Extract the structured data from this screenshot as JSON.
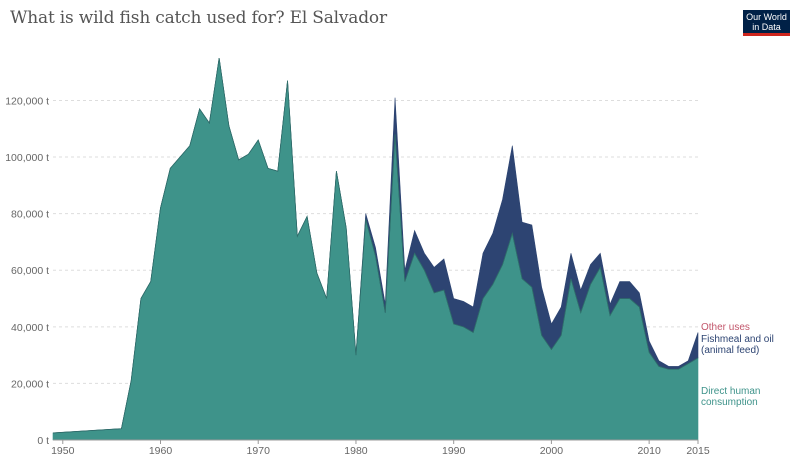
{
  "chart_data": {
    "type": "area",
    "stacked": true,
    "title": "What is wild fish catch used for? El Salvador",
    "xlim": [
      1949,
      2015
    ],
    "ylim": [
      0,
      135000
    ],
    "x_ticks": [
      1950,
      1960,
      1970,
      1980,
      1990,
      2000,
      2010,
      2015
    ],
    "y_ticks": [
      0,
      20000,
      40000,
      60000,
      80000,
      100000,
      120000
    ],
    "y_tick_labels": [
      "0 t",
      "20,000 t",
      "40,000 t",
      "60,000 t",
      "80,000 t",
      "100,000 t",
      "120,000 t"
    ],
    "grid": "horizontal",
    "legend": "right",
    "x": [
      1949,
      1956,
      1957,
      1958,
      1959,
      1960,
      1961,
      1962,
      1963,
      1964,
      1965,
      1966,
      1967,
      1968,
      1969,
      1970,
      1971,
      1972,
      1973,
      1974,
      1975,
      1976,
      1977,
      1978,
      1979,
      1980,
      1981,
      1982,
      1983,
      1984,
      1985,
      1986,
      1987,
      1988,
      1989,
      1990,
      1991,
      1992,
      1993,
      1994,
      1995,
      1996,
      1997,
      1998,
      1999,
      2000,
      2001,
      2002,
      2003,
      2004,
      2005,
      2006,
      2007,
      2008,
      2009,
      2010,
      2011,
      2012,
      2013,
      2014,
      2015
    ],
    "series": [
      {
        "name": "Direct human consumption",
        "color": "#3e938a",
        "values": [
          2500,
          4000,
          21000,
          50000,
          56000,
          82000,
          96000,
          100000,
          104000,
          117000,
          112000,
          135000,
          111000,
          99000,
          101000,
          106000,
          96000,
          95000,
          127000,
          72000,
          79000,
          59000,
          50000,
          95000,
          75000,
          30000,
          78000,
          65000,
          45000,
          108000,
          56000,
          66000,
          60000,
          52000,
          53000,
          41000,
          40000,
          38000,
          50000,
          55000,
          62000,
          73000,
          57000,
          54000,
          37000,
          32000,
          37000,
          57000,
          45000,
          55000,
          61000,
          44000,
          50000,
          50000,
          47000,
          31000,
          26000,
          25000,
          25000,
          27000,
          29000
        ]
      },
      {
        "name": "Fishmeal and oil (animal feed)",
        "color": "#2d4472",
        "values": [
          0,
          0,
          0,
          0,
          0,
          0,
          0,
          0,
          0,
          0,
          0,
          0,
          0,
          0,
          0,
          0,
          0,
          0,
          0,
          0,
          0,
          0,
          0,
          0,
          0,
          0,
          2000,
          3000,
          3000,
          13000,
          4000,
          8000,
          6000,
          9000,
          11000,
          9000,
          9000,
          9000,
          16000,
          18000,
          23000,
          31000,
          20000,
          22000,
          17000,
          9000,
          10000,
          9000,
          8000,
          7000,
          5000,
          4000,
          6000,
          6000,
          5000,
          4000,
          2000,
          1000,
          1000,
          1000,
          9000
        ]
      },
      {
        "name": "Other uses",
        "color": "#c2566b",
        "values": [
          0,
          0,
          0,
          0,
          0,
          0,
          0,
          0,
          0,
          0,
          0,
          0,
          0,
          0,
          0,
          0,
          0,
          0,
          0,
          0,
          0,
          0,
          0,
          0,
          0,
          0,
          0,
          0,
          0,
          0,
          0,
          0,
          0,
          0,
          0,
          0,
          0,
          0,
          0,
          0,
          0,
          0,
          0,
          0,
          0,
          0,
          0,
          0,
          0,
          0,
          0,
          0,
          0,
          0,
          0,
          0,
          0,
          0,
          0,
          0,
          0
        ]
      }
    ],
    "legend_lines": [
      [
        "Other uses"
      ],
      [
        "Fishmeal and oil",
        "(animal feed)"
      ],
      [
        "Direct human",
        "consumption"
      ]
    ]
  },
  "logo": {
    "line1": "Our World",
    "line2": "in Data"
  }
}
